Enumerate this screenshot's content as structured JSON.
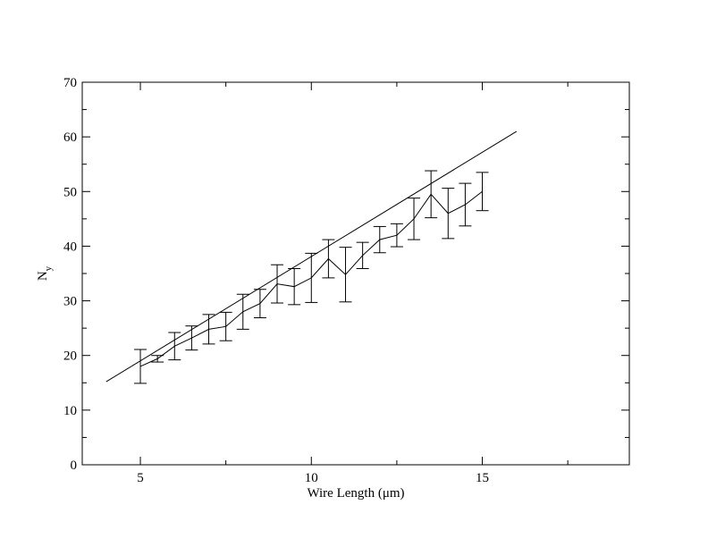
{
  "chart_data": {
    "type": "line",
    "title": "",
    "xlabel": "Wire Length (μm)",
    "ylabel_main": "N",
    "ylabel_sub": "y",
    "xlim": [
      3.3,
      19.3
    ],
    "ylim": [
      0,
      70
    ],
    "x_ticks": [
      5,
      10,
      15
    ],
    "y_ticks": [
      0,
      10,
      20,
      30,
      40,
      50,
      60,
      70
    ],
    "x_minor_ticks": [
      7.5,
      12.5,
      17.5
    ],
    "y_minor_ticks": [
      5,
      15,
      25,
      35,
      45,
      55,
      65
    ],
    "grid": false,
    "legend": "none",
    "series": [
      {
        "style": "line",
        "x": [
          4,
          16
        ],
        "y": [
          15.2,
          61
        ]
      },
      {
        "style": "line-errorbar",
        "x": [
          5,
          5.5,
          6,
          6.5,
          7,
          7.5,
          8,
          8.5,
          9,
          9.5,
          10,
          10.5,
          11,
          11.5,
          12,
          12.5,
          13,
          13.5,
          14,
          14.5,
          15
        ],
        "y": [
          18,
          19.4,
          21.7,
          23.2,
          24.8,
          25.3,
          28,
          29.5,
          33.1,
          32.6,
          34.2,
          37.7,
          34.8,
          38.3,
          41.2,
          42,
          45,
          49.5,
          46,
          47.6,
          50
        ],
        "err": [
          3.1,
          0.6,
          2.5,
          2.2,
          2.7,
          2.6,
          3.2,
          2.6,
          3.5,
          3.3,
          4.5,
          3.5,
          5,
          2.4,
          2.4,
          2.1,
          3.8,
          4.3,
          4.6,
          3.9,
          3.5
        ]
      }
    ]
  }
}
